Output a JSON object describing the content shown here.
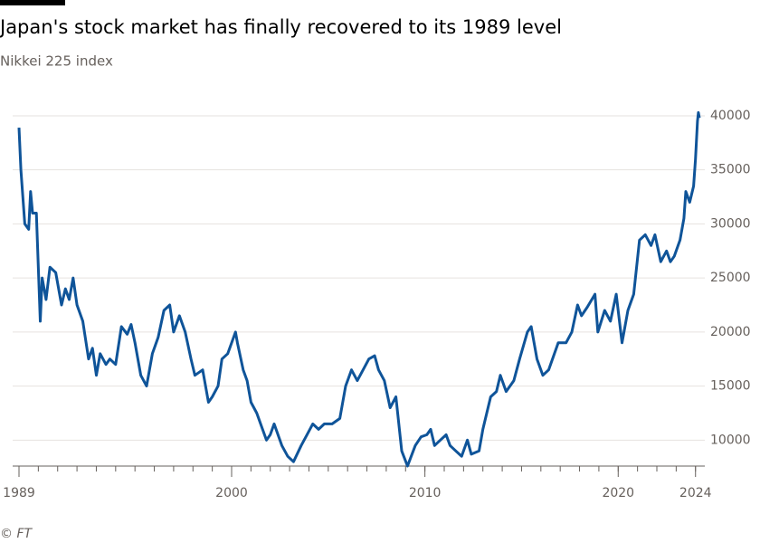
{
  "chart_data": {
    "type": "line",
    "title": "Japan's stock market has finally recovered to its 1989 level",
    "subtitle": "Nikkei 225 index",
    "source": "© FT",
    "x": [
      1989.0,
      1989.1,
      1989.3,
      1989.5,
      1989.6,
      1989.7,
      1989.9,
      1990.1,
      1990.2,
      1990.4,
      1990.6,
      1990.9,
      1991.2,
      1991.4,
      1991.6,
      1991.8,
      1992.0,
      1992.3,
      1992.6,
      1992.8,
      1993.0,
      1993.2,
      1993.5,
      1993.7,
      1994.0,
      1994.3,
      1994.6,
      1994.8,
      1995.0,
      1995.3,
      1995.6,
      1995.9,
      1996.2,
      1996.5,
      1996.8,
      1997.0,
      1997.3,
      1997.6,
      1997.9,
      1998.1,
      1998.5,
      1998.8,
      1999.0,
      1999.3,
      1999.5,
      1999.8,
      2000.2,
      2000.3,
      2000.6,
      2000.8,
      2001.0,
      2001.3,
      2001.6,
      2001.8,
      2002.0,
      2002.2,
      2002.6,
      2002.9,
      2003.2,
      2003.6,
      2003.9,
      2004.2,
      2004.5,
      2004.8,
      2005.2,
      2005.6,
      2005.9,
      2006.2,
      2006.5,
      2006.8,
      2007.1,
      2007.4,
      2007.6,
      2007.9,
      2008.2,
      2008.5,
      2008.8,
      2009.1,
      2009.5,
      2009.8,
      2010.1,
      2010.3,
      2010.5,
      2010.8,
      2011.1,
      2011.3,
      2011.6,
      2011.9,
      2012.2,
      2012.4,
      2012.8,
      2013.0,
      2013.4,
      2013.7,
      2013.9,
      2014.2,
      2014.6,
      2014.9,
      2015.3,
      2015.5,
      2015.8,
      2016.1,
      2016.4,
      2016.9,
      2017.3,
      2017.6,
      2017.9,
      2018.1,
      2018.4,
      2018.8,
      2018.95,
      2019.3,
      2019.6,
      2019.9,
      2020.2,
      2020.5,
      2020.8,
      2021.1,
      2021.4,
      2021.7,
      2021.9,
      2022.2,
      2022.5,
      2022.7,
      2022.9,
      2023.2,
      2023.4,
      2023.5,
      2023.7,
      2023.9,
      2024.0,
      2024.1,
      2024.15,
      2024.2
    ],
    "series": [
      {
        "name": "Nikkei 225",
        "color": "#0f5499",
        "values": [
          38900,
          35000,
          30000,
          29500,
          33000,
          31000,
          31000,
          21000,
          25000,
          23000,
          26000,
          25500,
          22500,
          24000,
          23000,
          25000,
          22500,
          21000,
          17500,
          18500,
          16000,
          18000,
          17000,
          17500,
          17000,
          20500,
          19800,
          20700,
          19000,
          16000,
          15000,
          18000,
          19500,
          22000,
          22500,
          20000,
          21500,
          20000,
          17500,
          16000,
          16500,
          13500,
          14000,
          15000,
          17500,
          18000,
          20000,
          19000,
          16500,
          15500,
          13500,
          12500,
          11000,
          10000,
          10500,
          11500,
          9500,
          8500,
          8000,
          9500,
          10500,
          11500,
          11000,
          11500,
          11500,
          12000,
          15000,
          16500,
          15500,
          16500,
          17500,
          17800,
          16500,
          15500,
          13000,
          14000,
          9000,
          7600,
          9500,
          10300,
          10500,
          11000,
          9500,
          10000,
          10500,
          9500,
          9000,
          8500,
          10000,
          8700,
          9000,
          11000,
          14000,
          14500,
          16000,
          14500,
          15500,
          17500,
          20000,
          20500,
          17500,
          16000,
          16500,
          19000,
          19000,
          20000,
          22500,
          21500,
          22300,
          23500,
          20000,
          22000,
          21000,
          23500,
          19000,
          22000,
          23500,
          28500,
          29000,
          28000,
          29000,
          26500,
          27500,
          26500,
          27000,
          28500,
          30500,
          33000,
          32000,
          33500,
          36000,
          39500,
          40300,
          39800
        ]
      }
    ],
    "xlim": [
      1989,
      2024.2
    ],
    "xticks": [
      1989,
      2000,
      2010,
      2020,
      2024
    ],
    "xminorticks": [
      1989,
      1990,
      1991,
      1992,
      1993,
      1994,
      1995,
      1996,
      1997,
      1998,
      1999,
      2000,
      2001,
      2002,
      2003,
      2004,
      2005,
      2006,
      2007,
      2008,
      2009,
      2010,
      2011,
      2012,
      2013,
      2014,
      2015,
      2016,
      2017,
      2018,
      2019,
      2020,
      2021,
      2022,
      2023,
      2024
    ],
    "ylim": [
      7600,
      41000
    ],
    "yticks": [
      10000,
      15000,
      20000,
      25000,
      30000,
      35000,
      40000
    ],
    "grid": true
  }
}
